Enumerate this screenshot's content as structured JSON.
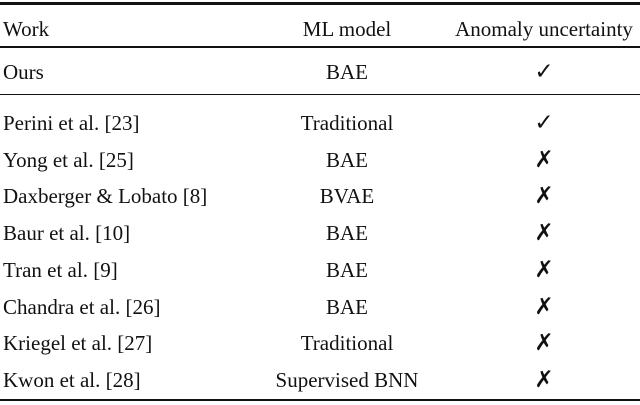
{
  "table": {
    "columns": [
      "Work",
      "ML model",
      "Anomaly uncertainty"
    ],
    "highlight_row": {
      "work": "Ours",
      "model": "BAE",
      "uncertainty": "✓"
    },
    "rows": [
      {
        "work": "Perini et al. [23]",
        "model": "Traditional",
        "uncertainty": "✓"
      },
      {
        "work": "Yong et al. [25]",
        "model": "BAE",
        "uncertainty": "✗"
      },
      {
        "work": "Daxberger & Lobato [8]",
        "model": "BVAE",
        "uncertainty": "✗"
      },
      {
        "work": "Baur et al. [10]",
        "model": "BAE",
        "uncertainty": "✗"
      },
      {
        "work": "Tran et al. [9]",
        "model": "BAE",
        "uncertainty": "✗"
      },
      {
        "work": "Chandra et al. [26]",
        "model": "BAE",
        "uncertainty": "✗"
      },
      {
        "work": "Kriegel et al. [27]",
        "model": "Traditional",
        "uncertainty": "✗"
      },
      {
        "work": "Kwon et al. [28]",
        "model": "Supervised BNN",
        "uncertainty": "✗"
      }
    ],
    "colors": {
      "text": "#111111",
      "rule": "#111111",
      "background": "#ffffff"
    }
  }
}
